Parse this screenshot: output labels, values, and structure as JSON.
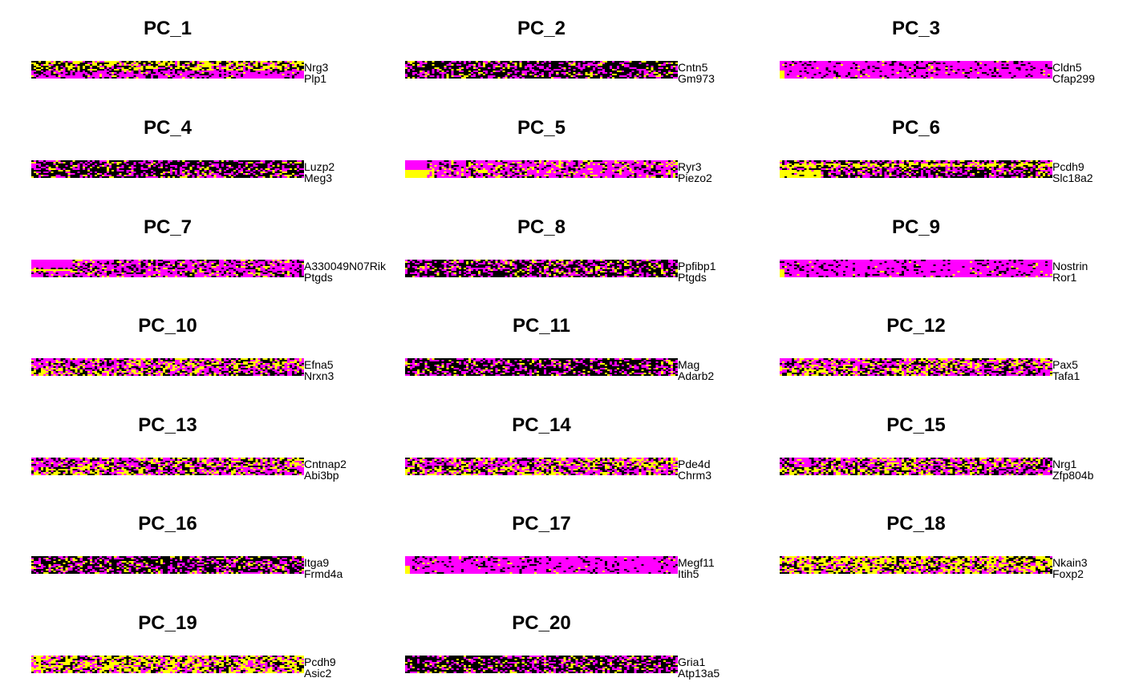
{
  "chart_data": {
    "type": "heatmap",
    "colors": {
      "low": "#FF00FF",
      "mid": "#000000",
      "high": "#FFFF00"
    },
    "panels": [
      {
        "title": "PC_1",
        "genes": [
          "Nrg3",
          "Plp1"
        ],
        "pattern": "top_high_right"
      },
      {
        "title": "PC_2",
        "genes": [
          "Cntn5",
          "Gm973"
        ],
        "pattern": "dark_mixed"
      },
      {
        "title": "PC_3",
        "genes": [
          "Cldn5",
          "Cfap299"
        ],
        "pattern": "mostly_low"
      },
      {
        "title": "PC_4",
        "genes": [
          "Luzp2",
          "Meg3"
        ],
        "pattern": "dark_mixed"
      },
      {
        "title": "PC_5",
        "genes": [
          "Ryr3",
          "Piezo2"
        ],
        "pattern": "low_left_block"
      },
      {
        "title": "PC_6",
        "genes": [
          "Pcdh9",
          "Slc18a2"
        ],
        "pattern": "bottom_high_left"
      },
      {
        "title": "PC_7",
        "genes": [
          "A330049N07Rik",
          "Ptgds"
        ],
        "pattern": "low_left_stripe"
      },
      {
        "title": "PC_8",
        "genes": [
          "Ppfibp1",
          "Ptgds"
        ],
        "pattern": "dark_mixed"
      },
      {
        "title": "PC_9",
        "genes": [
          "Nostrin",
          "Ror1"
        ],
        "pattern": "mostly_low"
      },
      {
        "title": "PC_10",
        "genes": [
          "Efna5",
          "Nrxn3"
        ],
        "pattern": "gradient"
      },
      {
        "title": "PC_11",
        "genes": [
          "Mag",
          "Adarb2"
        ],
        "pattern": "dark_mixed"
      },
      {
        "title": "PC_12",
        "genes": [
          "Pax5",
          "Tafa1"
        ],
        "pattern": "gradient"
      },
      {
        "title": "PC_13",
        "genes": [
          "Cntnap2",
          "Abi3bp"
        ],
        "pattern": "gradient"
      },
      {
        "title": "PC_14",
        "genes": [
          "Pde4d",
          "Chrm3"
        ],
        "pattern": "gradient"
      },
      {
        "title": "PC_15",
        "genes": [
          "Nrg1",
          "Zfp804b"
        ],
        "pattern": "gradient"
      },
      {
        "title": "PC_16",
        "genes": [
          "Itga9",
          "Frmd4a"
        ],
        "pattern": "dark_mixed"
      },
      {
        "title": "PC_17",
        "genes": [
          "Megf11",
          "Itih5"
        ],
        "pattern": "mostly_low"
      },
      {
        "title": "PC_18",
        "genes": [
          "Nkain3",
          "Foxp2"
        ],
        "pattern": "yellow_rich"
      },
      {
        "title": "PC_19",
        "genes": [
          "Pcdh9",
          "Asic2"
        ],
        "pattern": "yellow_rich"
      },
      {
        "title": "PC_20",
        "genes": [
          "Gria1",
          "Atp13a5"
        ],
        "pattern": "dark_mixed"
      }
    ]
  }
}
